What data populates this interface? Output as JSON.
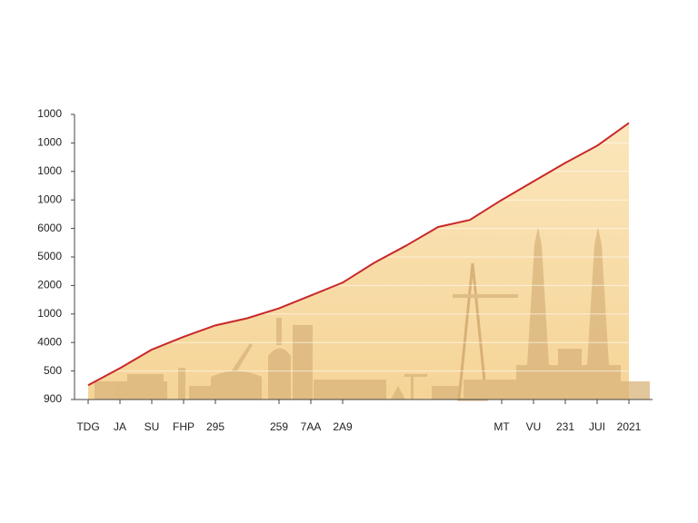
{
  "chart_data": {
    "type": "area",
    "categories": [
      "TDG",
      "JA",
      "SU",
      "FHP",
      "295",
      null,
      "259",
      "7AA",
      "2A9",
      null,
      null,
      null,
      null,
      "MT",
      "VU",
      "231",
      "JUI",
      "2021"
    ],
    "series": [
      {
        "color": "#c8282a",
        "fill": "#f9dea8",
        "values": [
          0.5,
          1.1,
          1.75,
          2.2,
          2.6,
          2.85,
          3.2,
          3.65,
          4.1,
          4.8,
          5.4,
          6.05,
          6.3,
          7.0,
          7.65,
          8.3,
          8.9,
          9.7
        ]
      }
    ],
    "ylim": [
      0,
      10
    ],
    "yticks": [
      {
        "value": 0,
        "label": "900"
      },
      {
        "value": 1,
        "label": "500"
      },
      {
        "value": 2,
        "label": "4000"
      },
      {
        "value": 3,
        "label": "1000"
      },
      {
        "value": 4,
        "label": "2000"
      },
      {
        "value": 5,
        "label": "5000"
      },
      {
        "value": 6,
        "label": "6000"
      },
      {
        "value": 7,
        "label": "1000"
      },
      {
        "value": 8,
        "label": "1000"
      },
      {
        "value": 9,
        "label": "1000"
      },
      {
        "value": 10,
        "label": "1000"
      }
    ],
    "grid": true
  }
}
